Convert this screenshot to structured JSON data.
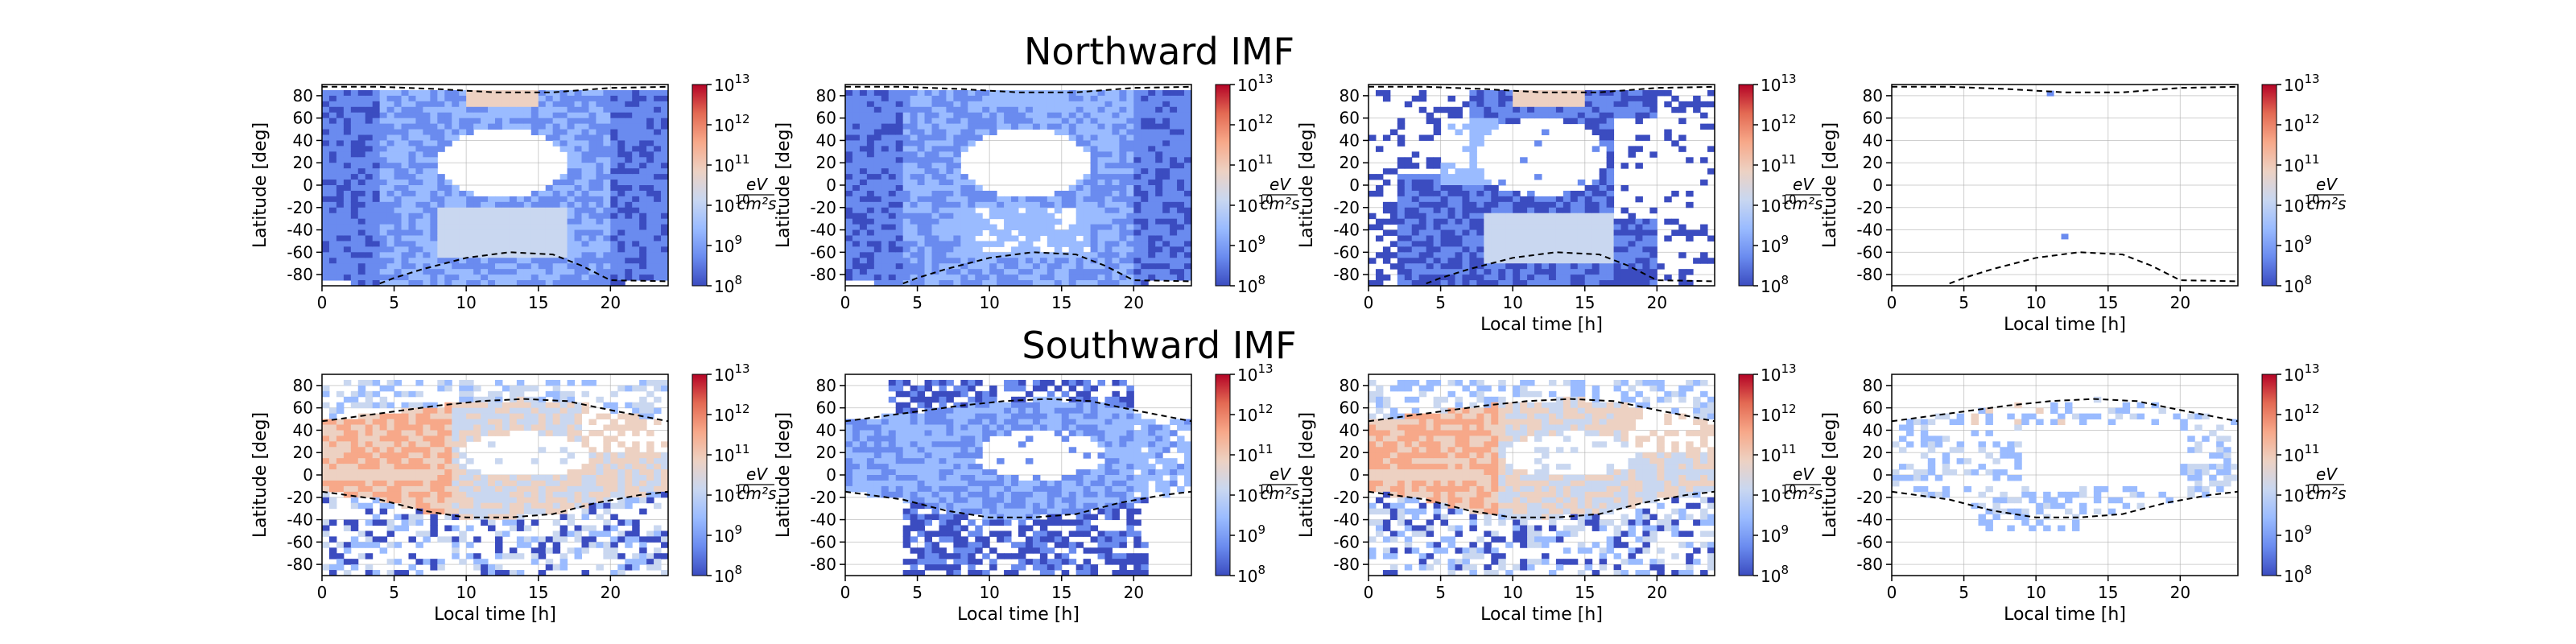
{
  "figure": {
    "row_titles": [
      "Northward IMF",
      "Southward IMF"
    ]
  },
  "chart_data": [
    {
      "type": "heatmap",
      "row": 0,
      "col": 0,
      "xlabel": "",
      "ylabel": "Latitude [deg]",
      "xlim": [
        0,
        24
      ],
      "ylim": [
        -90,
        90
      ],
      "x_ticks": [
        0,
        5,
        10,
        15,
        20
      ],
      "y_ticks": [
        -80,
        -60,
        -40,
        -20,
        0,
        20,
        40,
        60,
        80
      ],
      "grid": true,
      "pattern": "north-dense",
      "boundary_upper": "north",
      "boundary_lower": "south-north"
    },
    {
      "type": "heatmap",
      "row": 0,
      "col": 1,
      "xlabel": "",
      "ylabel": "Latitude [deg]",
      "xlim": [
        0,
        24
      ],
      "ylim": [
        -90,
        90
      ],
      "x_ticks": [
        0,
        5,
        10,
        15,
        20
      ],
      "y_ticks": [
        -80,
        -60,
        -40,
        -20,
        0,
        20,
        40,
        60,
        80
      ],
      "grid": true,
      "pattern": "north-dense-low",
      "boundary_upper": "north",
      "boundary_lower": "south-north"
    },
    {
      "type": "heatmap",
      "row": 0,
      "col": 2,
      "xlabel": "Local time [h]",
      "ylabel": "Latitude [deg]",
      "xlim": [
        0,
        24
      ],
      "ylim": [
        -90,
        90
      ],
      "x_ticks": [
        0,
        5,
        10,
        15,
        20
      ],
      "y_ticks": [
        -80,
        -60,
        -40,
        -20,
        0,
        20,
        40,
        60,
        80
      ],
      "grid": true,
      "pattern": "north-sparse",
      "boundary_upper": "north",
      "boundary_lower": "south-north"
    },
    {
      "type": "heatmap",
      "row": 0,
      "col": 3,
      "xlabel": "Local time [h]",
      "ylabel": "Latitude [deg]",
      "xlim": [
        0,
        24
      ],
      "ylim": [
        -90,
        90
      ],
      "x_ticks": [
        0,
        5,
        10,
        15,
        20
      ],
      "y_ticks": [
        -80,
        -60,
        -40,
        -20,
        0,
        20,
        40,
        60,
        80
      ],
      "grid": true,
      "pattern": "north-empty",
      "boundary_upper": "north",
      "boundary_lower": "south-north",
      "cells": [
        {
          "x": 11,
          "y": 82
        },
        {
          "x": 12,
          "y": -46
        }
      ]
    },
    {
      "type": "heatmap",
      "row": 1,
      "col": 0,
      "xlabel": "Local time [h]",
      "ylabel": "Latitude [deg]",
      "xlim": [
        0,
        24
      ],
      "ylim": [
        -90,
        90
      ],
      "x_ticks": [
        0,
        5,
        10,
        15,
        20
      ],
      "y_ticks": [
        -80,
        -60,
        -40,
        -20,
        0,
        20,
        40,
        60,
        80
      ],
      "grid": true,
      "pattern": "south-dense",
      "boundary_upper": "south-upper",
      "boundary_lower": "south-lower"
    },
    {
      "type": "heatmap",
      "row": 1,
      "col": 1,
      "xlabel": "Local time [h]",
      "ylabel": "Latitude [deg]",
      "xlim": [
        0,
        24
      ],
      "ylim": [
        -90,
        90
      ],
      "x_ticks": [
        0,
        5,
        10,
        15,
        20
      ],
      "y_ticks": [
        -80,
        -60,
        -40,
        -20,
        0,
        20,
        40,
        60,
        80
      ],
      "grid": true,
      "pattern": "south-low",
      "boundary_upper": "south-upper",
      "boundary_lower": "south-lower"
    },
    {
      "type": "heatmap",
      "row": 1,
      "col": 2,
      "xlabel": "Local time [h]",
      "ylabel": "Latitude [deg]",
      "xlim": [
        0,
        24
      ],
      "ylim": [
        -90,
        90
      ],
      "x_ticks": [
        0,
        5,
        10,
        15,
        20
      ],
      "y_ticks": [
        -80,
        -60,
        -40,
        -20,
        0,
        20,
        40,
        60,
        80
      ],
      "grid": true,
      "pattern": "south-dense",
      "boundary_upper": "south-upper",
      "boundary_lower": "south-lower"
    },
    {
      "type": "heatmap",
      "row": 1,
      "col": 3,
      "xlabel": "Local time [h]",
      "ylabel": "Latitude [deg]",
      "xlim": [
        0,
        24
      ],
      "ylim": [
        -90,
        90
      ],
      "x_ticks": [
        0,
        5,
        10,
        15,
        20
      ],
      "y_ticks": [
        -80,
        -60,
        -40,
        -20,
        0,
        20,
        40,
        60,
        80
      ],
      "grid": true,
      "pattern": "south-sparse",
      "boundary_upper": "south-upper",
      "boundary_lower": "south-lower"
    }
  ],
  "colorbar": {
    "scale": "log",
    "range": [
      100000000.0,
      10000000000000.0
    ],
    "tick_labels": [
      "10^8",
      "10^9",
      "10^10",
      "10^11",
      "10^12",
      "10^13"
    ],
    "unit_numerator": "eV",
    "unit_denominator": "cm²s",
    "colormap": "coolwarm",
    "colors": [
      "#3b4cc0",
      "#6a8bef",
      "#9abbff",
      "#c9d7f0",
      "#edd1c2",
      "#f7a889",
      "#e36a53",
      "#b40426"
    ]
  },
  "boundaries": {
    "north": [
      [
        0,
        88
      ],
      [
        4,
        88
      ],
      [
        8,
        86
      ],
      [
        12,
        83
      ],
      [
        16,
        83
      ],
      [
        20,
        87
      ],
      [
        24,
        88
      ]
    ],
    "south-north": [
      [
        4,
        -88
      ],
      [
        5,
        -83
      ],
      [
        7,
        -75
      ],
      [
        10,
        -65
      ],
      [
        13,
        -60
      ],
      [
        16,
        -62
      ],
      [
        18,
        -72
      ],
      [
        20,
        -85
      ],
      [
        24,
        -86
      ]
    ],
    "south-upper": [
      [
        0,
        48
      ],
      [
        4,
        55
      ],
      [
        8,
        62
      ],
      [
        11,
        66
      ],
      [
        14,
        68
      ],
      [
        17,
        66
      ],
      [
        20,
        58
      ],
      [
        24,
        48
      ]
    ],
    "south-lower": [
      [
        0,
        -15
      ],
      [
        4,
        -22
      ],
      [
        7,
        -32
      ],
      [
        10,
        -38
      ],
      [
        13,
        -38
      ],
      [
        16,
        -35
      ],
      [
        19,
        -25
      ],
      [
        22,
        -18
      ],
      [
        24,
        -15
      ]
    ]
  }
}
